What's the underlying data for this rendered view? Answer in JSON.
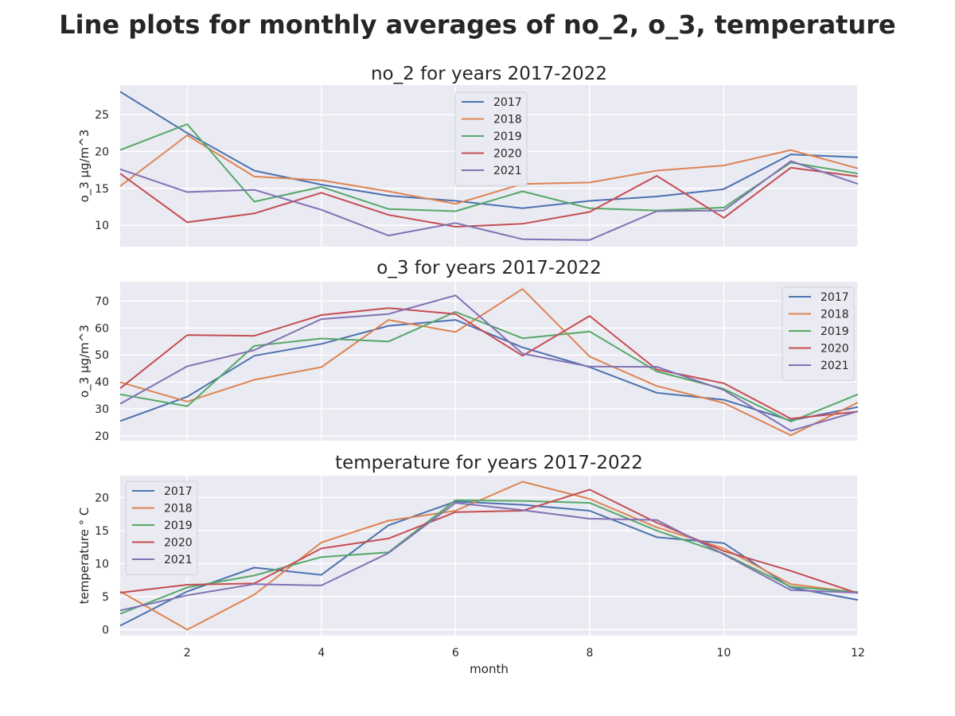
{
  "figure_title": "Line plots for monthly averages of no_2, o_3, temperature",
  "colors": {
    "2017": "#4c72b0",
    "2018": "#dd8452",
    "2019": "#55a868",
    "2020": "#c44e52",
    "2021": "#8172b3",
    "background": "#eaeaf2",
    "grid": "#ffffff"
  },
  "chart_data": [
    {
      "type": "line",
      "title": "no_2 for years 2017-2022",
      "xlabel": "",
      "ylabel": "o_3 µg/m^3",
      "xlim": [
        1,
        12
      ],
      "ylim": [
        7.1,
        29.0
      ],
      "yticks": [
        10,
        15,
        20,
        25
      ],
      "xticks": [
        2,
        4,
        6,
        8,
        10,
        12
      ],
      "legend_position": "upper-center",
      "x": [
        1,
        2,
        3,
        4,
        5,
        6,
        7,
        8,
        9,
        10,
        11,
        12
      ],
      "series": [
        {
          "name": "2017",
          "values": [
            28.1,
            22.5,
            17.4,
            15.5,
            14.0,
            13.3,
            12.3,
            13.3,
            13.9,
            14.9,
            19.6,
            19.2
          ]
        },
        {
          "name": "2018",
          "values": [
            15.3,
            22.2,
            16.6,
            16.1,
            14.6,
            12.9,
            15.6,
            15.8,
            17.4,
            18.1,
            20.2,
            17.7
          ]
        },
        {
          "name": "2019",
          "values": [
            20.2,
            23.7,
            13.2,
            15.2,
            12.2,
            11.9,
            14.6,
            12.3,
            12.0,
            12.4,
            18.5,
            17.0
          ]
        },
        {
          "name": "2020",
          "values": [
            17.0,
            10.4,
            11.6,
            14.4,
            11.4,
            9.8,
            10.2,
            11.8,
            16.7,
            11.0,
            17.8,
            16.6
          ]
        },
        {
          "name": "2021",
          "values": [
            17.6,
            14.5,
            14.8,
            12.1,
            8.6,
            10.3,
            8.1,
            8.0,
            11.9,
            12.0,
            18.7,
            15.6
          ]
        }
      ]
    },
    {
      "type": "line",
      "title": "o_3 for years 2017-2022",
      "xlabel": "",
      "ylabel": "o_3 µg/m^3",
      "xlim": [
        1,
        12
      ],
      "ylim": [
        18.2,
        77.2
      ],
      "yticks": [
        20,
        30,
        40,
        50,
        60,
        70
      ],
      "xticks": [
        2,
        4,
        6,
        8,
        10,
        12
      ],
      "legend_position": "upper-right",
      "x": [
        1,
        2,
        3,
        4,
        5,
        6,
        7,
        8,
        9,
        10,
        11,
        12
      ],
      "series": [
        {
          "name": "2017",
          "values": [
            25.5,
            34.5,
            49.7,
            54.1,
            60.8,
            63.0,
            52.8,
            45.5,
            36.0,
            33.4,
            25.7,
            30.7
          ]
        },
        {
          "name": "2018",
          "values": [
            39.9,
            32.7,
            40.8,
            45.5,
            63.0,
            58.5,
            74.5,
            49.4,
            38.5,
            32.2,
            20.2,
            32.4
          ]
        },
        {
          "name": "2019",
          "values": [
            35.4,
            31.0,
            53.4,
            56.1,
            55.0,
            66.0,
            56.2,
            58.7,
            43.9,
            37.4,
            25.3,
            35.4
          ]
        },
        {
          "name": "2020",
          "values": [
            37.6,
            57.4,
            57.1,
            64.8,
            67.4,
            65.2,
            49.7,
            64.5,
            44.6,
            39.5,
            26.4,
            29.0
          ]
        },
        {
          "name": "2021",
          "values": [
            31.9,
            45.8,
            51.8,
            63.3,
            65.2,
            72.1,
            50.5,
            45.7,
            45.6,
            37.0,
            21.9,
            29.1
          ]
        }
      ]
    },
    {
      "type": "line",
      "title": "temperature for years 2017-2022",
      "xlabel": "month",
      "ylabel": "temperature ° C",
      "xlim": [
        1,
        12
      ],
      "ylim": [
        -0.9,
        23.3
      ],
      "yticks": [
        0,
        5,
        10,
        15,
        20
      ],
      "xticks": [
        2,
        4,
        6,
        8,
        10,
        12
      ],
      "legend_position": "upper-left",
      "x": [
        1,
        2,
        3,
        4,
        5,
        6,
        7,
        8,
        9,
        10,
        11,
        12
      ],
      "series": [
        {
          "name": "2017",
          "values": [
            0.6,
            5.8,
            9.4,
            8.3,
            15.8,
            19.4,
            18.9,
            18.0,
            14.0,
            13.1,
            6.4,
            4.5
          ]
        },
        {
          "name": "2018",
          "values": [
            5.8,
            0.0,
            5.3,
            13.2,
            16.5,
            18.0,
            22.4,
            19.8,
            15.5,
            12.3,
            6.9,
            5.6
          ]
        },
        {
          "name": "2019",
          "values": [
            2.4,
            6.4,
            8.2,
            11.0,
            11.7,
            19.6,
            19.5,
            19.2,
            15.0,
            11.5,
            6.5,
            5.7
          ]
        },
        {
          "name": "2020",
          "values": [
            5.6,
            6.8,
            7.0,
            12.3,
            13.8,
            17.8,
            18.0,
            21.2,
            16.2,
            11.9,
            8.9,
            5.5
          ]
        },
        {
          "name": "2021",
          "values": [
            2.9,
            5.2,
            6.9,
            6.7,
            11.6,
            19.2,
            18.1,
            16.8,
            16.6,
            11.4,
            6.0,
            5.6
          ]
        }
      ]
    }
  ]
}
